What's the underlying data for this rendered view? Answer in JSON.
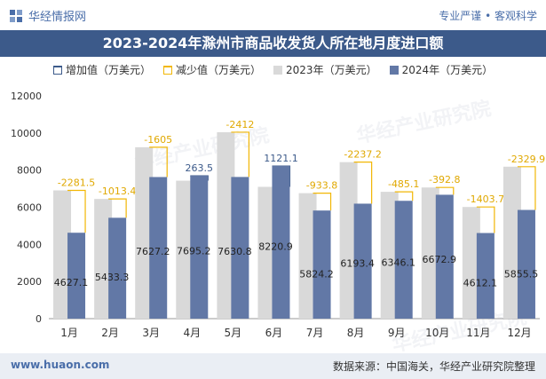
{
  "header": {
    "brand": "华经情报网",
    "slogan": "专业严谨 • 客观科学"
  },
  "footer": {
    "url": "www.huaon.com",
    "source": "数据来源：中国海关，华经产业研究院整理"
  },
  "watermark": "华经产业研究院",
  "colors": {
    "title_bg": "#3c5a8a",
    "bar_2023": "#d9d9d9",
    "bar_2024": "#6278a6",
    "increase": "#3c5a8a",
    "decrease": "#f2b705"
  },
  "chart_data": {
    "type": "bar",
    "title": "2023-2024年滁州市商品收发货人所在地月度进口额",
    "categories": [
      "1月",
      "2月",
      "3月",
      "4月",
      "5月",
      "6月",
      "7月",
      "8月",
      "9月",
      "10月",
      "11月",
      "12月"
    ],
    "series": [
      {
        "name": "2023年（万美元）",
        "values": [
          6908.6,
          6446.7,
          9232.4,
          7431.7,
          10042.8,
          7099.8,
          6758.1,
          8430.6,
          6831.2,
          7065.7,
          6015.8,
          8185.4
        ]
      },
      {
        "name": "2024年（万美元）",
        "values": [
          4627.1,
          5433.3,
          7627.2,
          7695.2,
          7630.8,
          8220.9,
          5824.2,
          6193.4,
          6346.1,
          6672.9,
          4612.1,
          5855.5
        ]
      }
    ],
    "change": {
      "increase_name": "增加值（万美元）",
      "decrease_name": "减少值（万美元）",
      "labels": [
        "-2281.5",
        "-1013.4",
        "-1605",
        "263.5",
        "-2412",
        "1121.1",
        "-933.8",
        "-2237.2",
        "-485.1",
        "-392.8",
        "-1403.7",
        "-2329.9"
      ],
      "values": [
        -2281.5,
        -1013.4,
        -1605,
        263.5,
        -2412,
        1121.1,
        -933.8,
        -2237.2,
        -485.1,
        -392.8,
        -1403.7,
        -2329.9
      ]
    },
    "ylim": [
      0,
      12000
    ],
    "yticks": [
      0,
      2000,
      4000,
      6000,
      8000,
      10000,
      12000
    ],
    "legend_position": "top",
    "grid": false
  }
}
